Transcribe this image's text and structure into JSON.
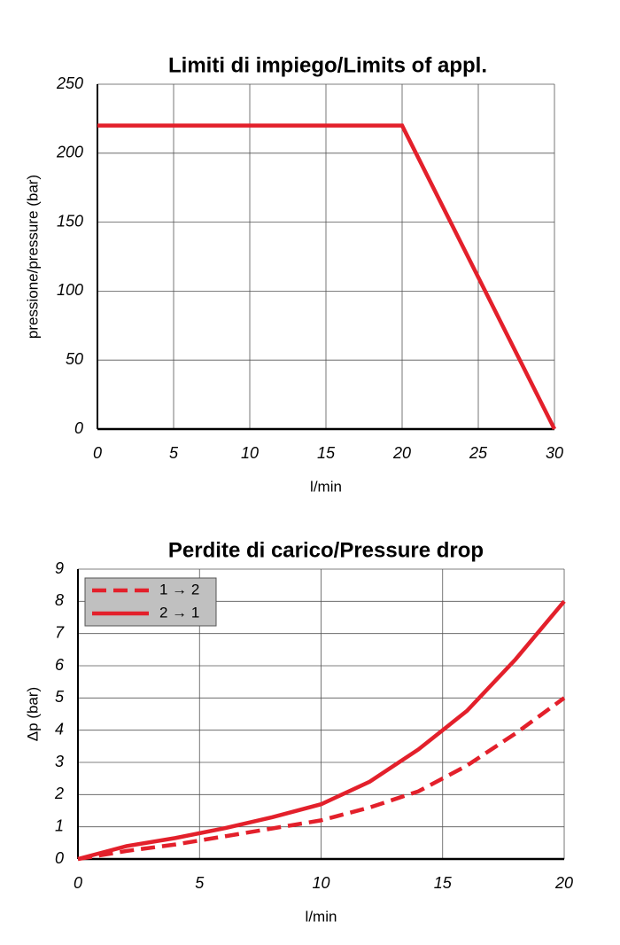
{
  "chart_data": [
    {
      "type": "line",
      "title": "Limiti di impiego/Limits of appl.",
      "x_label": "l/min",
      "y_label": "pressione/pressure (bar)",
      "x": [
        0,
        20,
        30
      ],
      "values": [
        220,
        220,
        0
      ],
      "color": "#e3202b",
      "xlim": [
        0,
        30
      ],
      "xticks": [
        0,
        5,
        10,
        15,
        20,
        25,
        30
      ],
      "ylim": [
        0,
        250
      ],
      "yticks": [
        0,
        50,
        100,
        150,
        200,
        250
      ],
      "grid": true
    },
    {
      "type": "line",
      "title": "Perdite di carico/Pressure drop",
      "x_label": "l/min",
      "y_label": "Δp (bar)",
      "x": [
        0,
        2,
        4,
        6,
        8,
        10,
        12,
        14,
        16,
        18,
        20
      ],
      "series": [
        {
          "name": "1 → 2",
          "color": "#e3202b",
          "style": "dashed",
          "values": [
            0,
            0.25,
            0.45,
            0.7,
            0.95,
            1.2,
            1.6,
            2.1,
            2.9,
            3.9,
            5
          ]
        },
        {
          "name": "2 → 1",
          "color": "#e3202b",
          "style": "solid",
          "values": [
            0,
            0.4,
            0.65,
            0.95,
            1.3,
            1.7,
            2.4,
            3.4,
            4.6,
            6.2,
            8
          ]
        }
      ],
      "xlim": [
        0,
        20
      ],
      "xticks": [
        0,
        5,
        10,
        15,
        20
      ],
      "ylim": [
        0,
        9
      ],
      "yticks": [
        0,
        1,
        2,
        3,
        4,
        5,
        6,
        7,
        8,
        9
      ],
      "grid": true,
      "legend": "upper left"
    }
  ]
}
